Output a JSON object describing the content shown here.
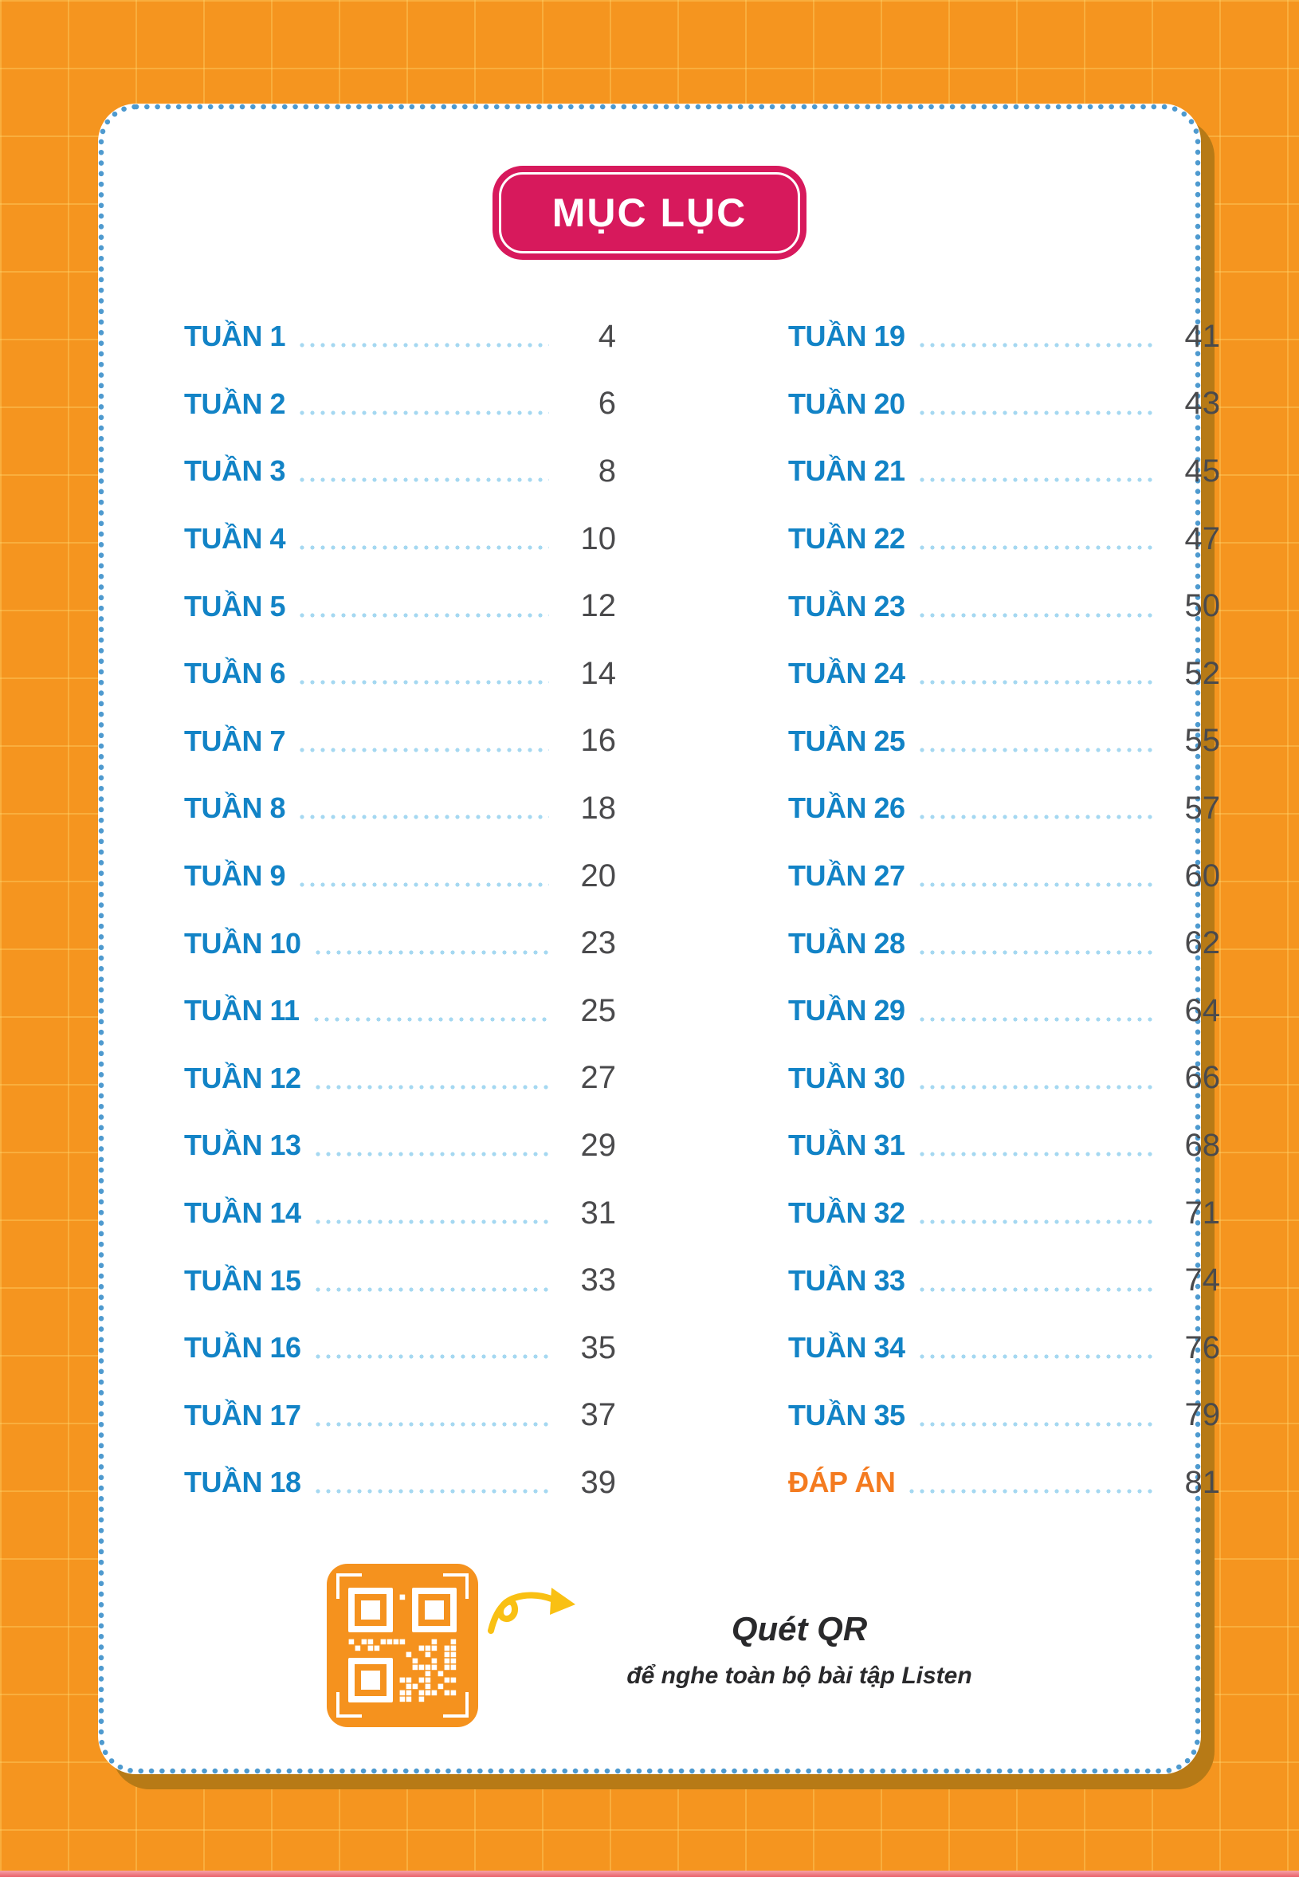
{
  "header": {
    "title": "MỤC LỤC"
  },
  "toc": {
    "left": [
      {
        "label": "TUẦN 1",
        "page": "4"
      },
      {
        "label": "TUẦN 2",
        "page": "6"
      },
      {
        "label": "TUẦN 3",
        "page": "8"
      },
      {
        "label": "TUẦN 4",
        "page": "10"
      },
      {
        "label": "TUẦN 5",
        "page": "12"
      },
      {
        "label": "TUẦN 6",
        "page": "14"
      },
      {
        "label": "TUẦN 7",
        "page": "16"
      },
      {
        "label": "TUẦN 8",
        "page": "18"
      },
      {
        "label": "TUẦN 9",
        "page": "20"
      },
      {
        "label": "TUẦN 10",
        "page": "23"
      },
      {
        "label": "TUẦN 11",
        "page": "25"
      },
      {
        "label": "TUẦN 12",
        "page": "27"
      },
      {
        "label": "TUẦN 13",
        "page": "29"
      },
      {
        "label": "TUẦN 14",
        "page": "31"
      },
      {
        "label": "TUẦN 15",
        "page": "33"
      },
      {
        "label": "TUẦN 16",
        "page": "35"
      },
      {
        "label": "TUẦN 17",
        "page": "37"
      },
      {
        "label": "TUẦN 18",
        "page": "39"
      }
    ],
    "right": [
      {
        "label": "TUẦN 19",
        "page": "41"
      },
      {
        "label": "TUẦN 20",
        "page": "43"
      },
      {
        "label": "TUẦN 21",
        "page": "45"
      },
      {
        "label": "TUẦN 22",
        "page": "47"
      },
      {
        "label": "TUẦN 23",
        "page": "50"
      },
      {
        "label": "TUẦN 24",
        "page": "52"
      },
      {
        "label": "TUẦN 25",
        "page": "55"
      },
      {
        "label": "TUẦN 26",
        "page": "57"
      },
      {
        "label": "TUẦN 27",
        "page": "60"
      },
      {
        "label": "TUẦN 28",
        "page": "62"
      },
      {
        "label": "TUẦN 29",
        "page": "64"
      },
      {
        "label": "TUẦN 30",
        "page": "66"
      },
      {
        "label": "TUẦN 31",
        "page": "68"
      },
      {
        "label": "TUẦN 32",
        "page": "71"
      },
      {
        "label": "TUẦN 33",
        "page": "74"
      },
      {
        "label": "TUẦN 34",
        "page": "76"
      },
      {
        "label": "TUẦN 35",
        "page": "79"
      },
      {
        "label": "ĐÁP ÁN",
        "page": "81",
        "accent": true
      }
    ]
  },
  "qr": {
    "title": "Quét QR",
    "subtitle": "để nghe toàn bộ bài tập Listen",
    "qr_icon": "qr-code-icon",
    "arrow_icon": "curly-arrow-icon"
  },
  "colors": {
    "background": "#F5951F",
    "card": "#FFFFFF",
    "card_border_dots": "#4E9ACF",
    "card_shadow": "#B77A16",
    "badge": "#D7195C",
    "entry_label": "#1283C6",
    "entry_page": "#4A4A4C",
    "leader_dots": "#A5D8F1",
    "accent_label": "#F47B20",
    "qr_tile": "#F5921E",
    "arrow": "#F9C013",
    "bottom_strip": "#E9616A"
  }
}
